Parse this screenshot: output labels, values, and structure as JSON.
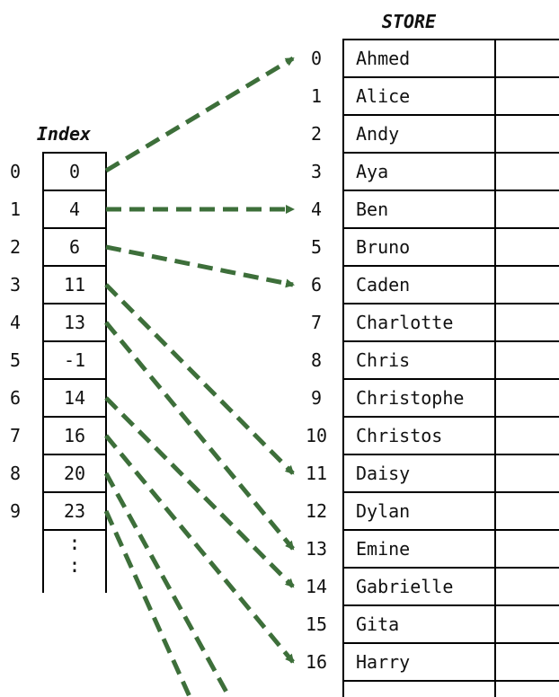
{
  "index_title": "Index",
  "store_title": "STORE",
  "index_positions": [
    "0",
    "1",
    "2",
    "3",
    "4",
    "5",
    "6",
    "7",
    "8",
    "9"
  ],
  "index_values": [
    "0",
    "4",
    "6",
    "11",
    "13",
    "-1",
    "14",
    "16",
    "20",
    "23"
  ],
  "index_ellipsis": ":",
  "store_positions": [
    "0",
    "1",
    "2",
    "3",
    "4",
    "5",
    "6",
    "7",
    "8",
    "9",
    "10",
    "11",
    "12",
    "13",
    "14",
    "15",
    "16"
  ],
  "store_names": [
    "Ahmed",
    "Alice",
    "Andy",
    "Aya",
    "Ben",
    "Bruno",
    "Caden",
    "Charlotte",
    "Chris",
    "Christophe",
    "Christos",
    "Daisy",
    "Dylan",
    "Emine",
    "Gabrielle",
    "Gita",
    "Harry"
  ],
  "colors": {
    "arrow": "#3d6f3a",
    "line": "#000000",
    "text": "#111111"
  }
}
